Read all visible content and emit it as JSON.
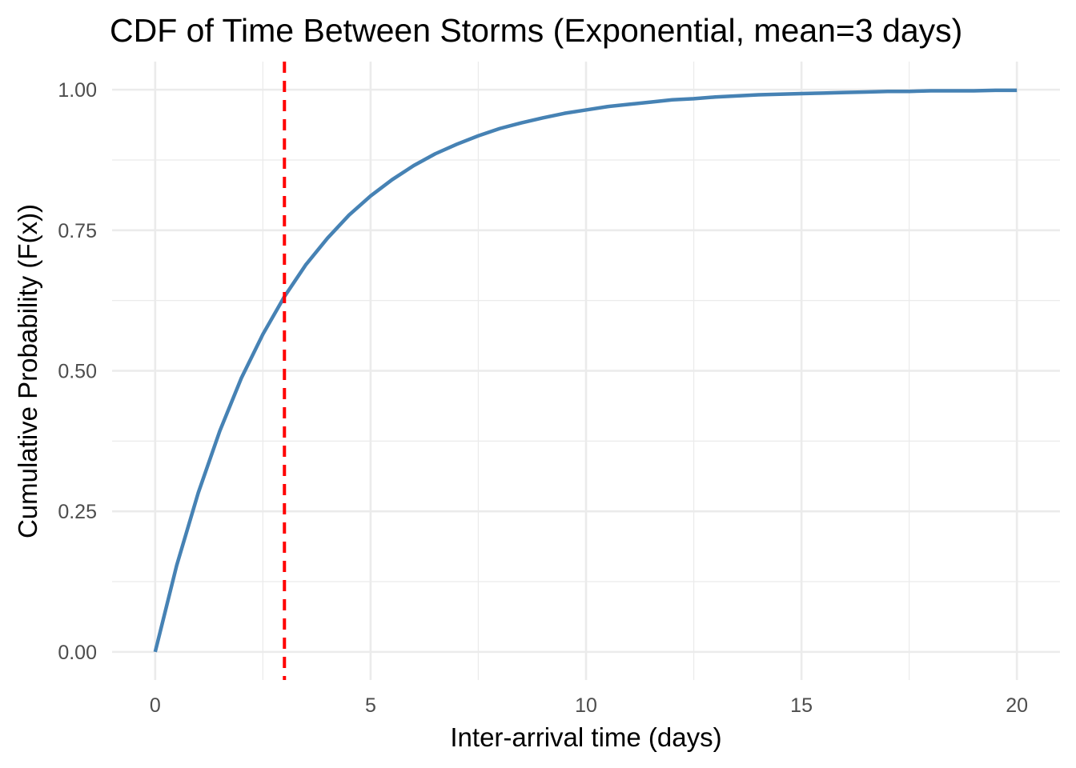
{
  "chart_data": {
    "type": "line",
    "title": "CDF of Time Between Storms (Exponential, mean=3 days)",
    "xlabel": "Inter-arrival time (days)",
    "ylabel": "Cumulative Probability (F(x))",
    "xlim": [
      -1,
      21
    ],
    "ylim": [
      -0.05,
      1.05
    ],
    "x_ticks": [
      0,
      5,
      10,
      15,
      20
    ],
    "x_tick_labels": [
      "0",
      "5",
      "10",
      "15",
      "20"
    ],
    "y_ticks": [
      0,
      0.25,
      0.5,
      0.75,
      1
    ],
    "y_tick_labels": [
      "0.00",
      "0.25",
      "0.50",
      "0.75",
      "1.00"
    ],
    "x_minor_ticks": [
      2.5,
      7.5,
      12.5,
      17.5
    ],
    "y_minor_ticks": [
      0.125,
      0.375,
      0.625,
      0.875
    ],
    "grid": true,
    "legend": "none",
    "series": [
      {
        "color": "#4682b4",
        "x": [
          0,
          0.5,
          1,
          1.5,
          2,
          2.5,
          3,
          3.5,
          4,
          4.5,
          5,
          5.5,
          6,
          6.5,
          7,
          7.5,
          8,
          8.5,
          9,
          9.5,
          10,
          10.5,
          11,
          11.5,
          12,
          12.5,
          13,
          13.5,
          14,
          14.5,
          15,
          15.5,
          16,
          16.5,
          17,
          17.5,
          18,
          18.5,
          19,
          19.5,
          20
        ],
        "y": [
          0,
          0.154,
          0.283,
          0.393,
          0.487,
          0.565,
          0.632,
          0.689,
          0.736,
          0.777,
          0.811,
          0.84,
          0.865,
          0.886,
          0.903,
          0.918,
          0.931,
          0.941,
          0.95,
          0.958,
          0.964,
          0.97,
          0.974,
          0.978,
          0.982,
          0.984,
          0.987,
          0.989,
          0.991,
          0.992,
          0.993,
          0.994,
          0.995,
          0.996,
          0.997,
          0.997,
          0.998,
          0.998,
          0.998,
          0.999,
          0.999
        ]
      }
    ],
    "reference_line": {
      "x": 3,
      "color": "#ff0000",
      "style": "dashed"
    }
  }
}
